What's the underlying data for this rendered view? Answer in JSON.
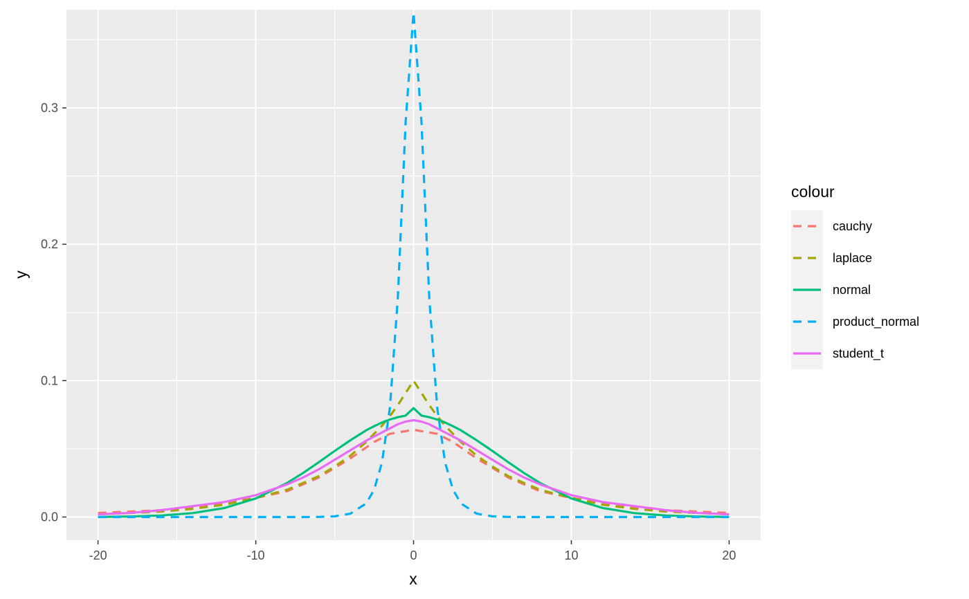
{
  "chart_data": {
    "type": "line",
    "xlabel": "x",
    "ylabel": "y",
    "xlim": [
      -22,
      22
    ],
    "ylim": [
      -0.017,
      0.372
    ],
    "x_ticks": [
      -20,
      -10,
      0,
      10,
      20
    ],
    "x_tick_labels": [
      "-20",
      "-10",
      "0",
      "10",
      "20"
    ],
    "y_ticks": [
      0.0,
      0.1,
      0.2,
      0.3
    ],
    "y_tick_labels": [
      "0.0",
      "0.1",
      "0.2",
      "0.3"
    ],
    "grid": true,
    "legend_position": "right",
    "legend_title": "colour",
    "x": [
      -20,
      -18,
      -16,
      -14,
      -12,
      -10,
      -8,
      -7,
      -6,
      -5,
      -4,
      -3,
      -2.5,
      -2,
      -1.5,
      -1,
      -0.5,
      0,
      0.5,
      1,
      1.5,
      2,
      2.5,
      3,
      4,
      5,
      6,
      7,
      8,
      10,
      12,
      14,
      16,
      18,
      20
    ],
    "series": [
      {
        "name": "cauchy",
        "color": "#F8766D",
        "dash": "dashed",
        "values": [
          0.003,
          0.004,
          0.005,
          0.007,
          0.01,
          0.014,
          0.019,
          0.024,
          0.029,
          0.036,
          0.043,
          0.051,
          0.055,
          0.058,
          0.061,
          0.062,
          0.063,
          0.064,
          0.063,
          0.062,
          0.061,
          0.058,
          0.055,
          0.051,
          0.043,
          0.036,
          0.029,
          0.024,
          0.019,
          0.014,
          0.01,
          0.007,
          0.005,
          0.004,
          0.003
        ]
      },
      {
        "name": "laplace",
        "color": "#A3A500",
        "dash": "dashed",
        "values": [
          0.002,
          0.003,
          0.004,
          0.006,
          0.009,
          0.014,
          0.02,
          0.025,
          0.03,
          0.037,
          0.045,
          0.055,
          0.061,
          0.067,
          0.074,
          0.082,
          0.091,
          0.1,
          0.091,
          0.082,
          0.074,
          0.067,
          0.061,
          0.055,
          0.045,
          0.037,
          0.03,
          0.025,
          0.02,
          0.014,
          0.009,
          0.006,
          0.004,
          0.003,
          0.002
        ]
      },
      {
        "name": "normal",
        "color": "#00BF7D",
        "dash": "solid",
        "values": [
          0.0001,
          0.0004,
          0.0011,
          0.0029,
          0.0066,
          0.0136,
          0.0251,
          0.0323,
          0.0402,
          0.0484,
          0.0563,
          0.0636,
          0.0666,
          0.0693,
          0.0715,
          0.0732,
          0.0744,
          0.0798,
          0.0744,
          0.0732,
          0.0715,
          0.0693,
          0.0666,
          0.0636,
          0.0563,
          0.0484,
          0.0402,
          0.0323,
          0.0251,
          0.0136,
          0.0066,
          0.0029,
          0.0011,
          0.0004,
          0.0001
        ]
      },
      {
        "name": "product_normal",
        "color": "#00B0F6",
        "dash": "dashed",
        "values": [
          0,
          0,
          0,
          0,
          0,
          0,
          0,
          0,
          0.0001,
          0.0005,
          0.0025,
          0.01,
          0.02,
          0.04,
          0.08,
          0.16,
          0.29,
          0.37,
          0.29,
          0.16,
          0.08,
          0.04,
          0.02,
          0.01,
          0.0025,
          0.0005,
          0.0001,
          0,
          0,
          0,
          0,
          0,
          0,
          0,
          0
        ]
      },
      {
        "name": "student_t",
        "color": "#E76BF3",
        "dash": "solid",
        "values": [
          0.002,
          0.003,
          0.005,
          0.008,
          0.011,
          0.016,
          0.024,
          0.029,
          0.035,
          0.042,
          0.049,
          0.056,
          0.059,
          0.062,
          0.065,
          0.068,
          0.07,
          0.071,
          0.07,
          0.068,
          0.065,
          0.062,
          0.059,
          0.056,
          0.049,
          0.042,
          0.035,
          0.029,
          0.024,
          0.016,
          0.011,
          0.008,
          0.005,
          0.003,
          0.002
        ]
      }
    ]
  }
}
